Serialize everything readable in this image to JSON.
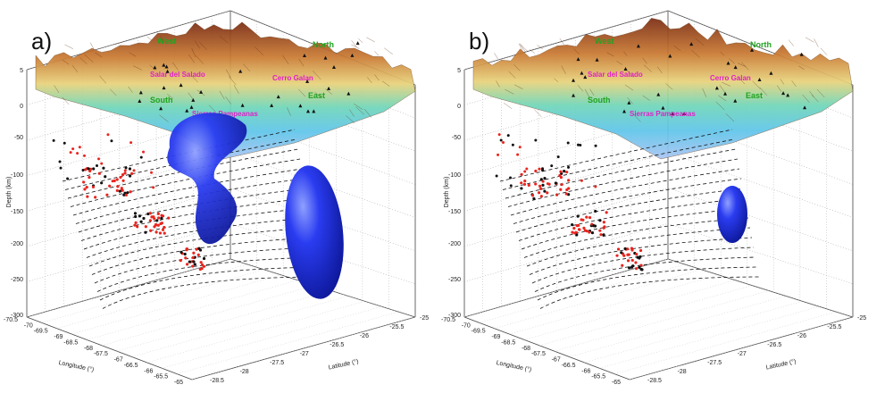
{
  "chart_data": [
    {
      "type": "scatter",
      "panel_label": "a)",
      "zlabel": "Depth (km)",
      "xlabel": "Longitude (°)",
      "ylabel": "Latitude (°)",
      "depth_ticks": [
        "5",
        "0",
        "-50",
        "-100",
        "-150",
        "-200",
        "-250",
        "-300"
      ],
      "longitude_ticks": [
        "-70.5",
        "-70",
        "-69.5",
        "-69",
        "-68.5",
        "-68",
        "-67.5",
        "-67",
        "-66.5",
        "-66",
        "-65.5",
        "-65"
      ],
      "latitude_ticks": [
        "-25",
        "-25.5",
        "-26",
        "-26.5",
        "-27",
        "-27.5",
        "-28",
        "-28.5"
      ],
      "geo_labels": {
        "west": "West",
        "north": "North",
        "south": "South",
        "east": "East",
        "salar": "Salar del Salado",
        "cerro": "Cerro Galan",
        "sierras": "Sierras Pampeanas"
      },
      "colors": {
        "red_events": "#e8251e",
        "black_events": "#111111",
        "anomaly": "#1a2ee6"
      },
      "anomalies": 2
    },
    {
      "type": "scatter",
      "panel_label": "b)",
      "zlabel": "Depth (km)",
      "xlabel": "Longitude (°)",
      "ylabel": "Latitude (°)",
      "depth_ticks": [
        "5",
        "0",
        "-50",
        "-100",
        "-150",
        "-200",
        "-250",
        "-300"
      ],
      "longitude_ticks": [
        "-70.5",
        "-70",
        "-69.5",
        "-69",
        "-68.5",
        "-68",
        "-67.5",
        "-67",
        "-66.5",
        "-66",
        "-65.5",
        "-65"
      ],
      "latitude_ticks": [
        "-25",
        "-25.5",
        "-26",
        "-26.5",
        "-27",
        "-27.5",
        "-28",
        "-28.5"
      ],
      "geo_labels": {
        "west": "West",
        "north": "North",
        "south": "South",
        "east": "East",
        "salar": "Salar del Salado",
        "cerro": "Cerro Galan",
        "sierras": "Sierras Pampeanas"
      },
      "colors": {
        "red_events": "#e8251e",
        "black_events": "#111111",
        "anomaly": "#1a2ee6"
      },
      "anomalies": 1
    }
  ]
}
